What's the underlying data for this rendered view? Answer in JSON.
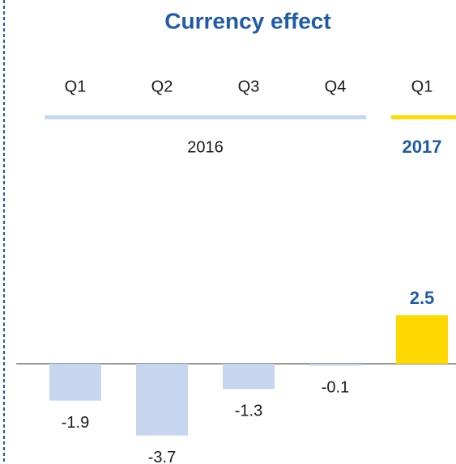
{
  "chart_data": {
    "type": "bar",
    "title": "Currency effect",
    "groups": [
      {
        "name": "2016",
        "color": "#c6d6ef",
        "categories": [
          "Q1",
          "Q2",
          "Q3",
          "Q4"
        ],
        "values": [
          -1.9,
          -3.7,
          -1.3,
          -0.1
        ]
      },
      {
        "name": "2017",
        "color": "#ffd800",
        "categories": [
          "Q1"
        ],
        "values": [
          2.5
        ]
      }
    ]
  }
}
